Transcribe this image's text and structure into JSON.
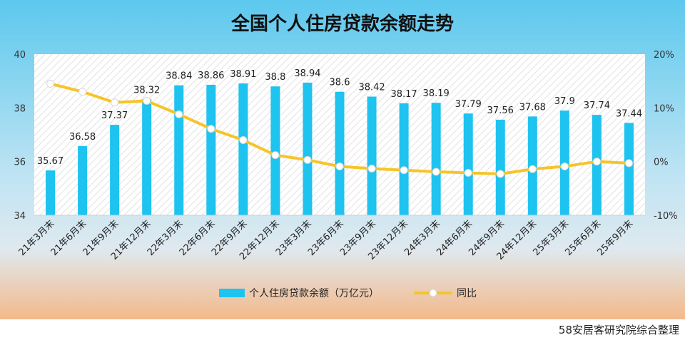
{
  "chart_data": {
    "type": "bar",
    "title": "全国个人住房贷款余额走势",
    "categories": [
      "21年3月末",
      "21年6月末",
      "21年9月末",
      "21年12月末",
      "22年3月末",
      "22年6月末",
      "22年9月末",
      "22年12月末",
      "23年3月末",
      "23年6月末",
      "23年9月末",
      "23年12月末",
      "24年3月末",
      "24年6月末",
      "24年9月末",
      "24年12月末",
      "25年3月末",
      "25年6月末",
      "25年9月末"
    ],
    "series": [
      {
        "name": "个人住房贷款余额（万亿元）",
        "type": "bar",
        "axis": "left",
        "color": "#1ec3ef",
        "values": [
          35.67,
          36.58,
          37.37,
          38.32,
          38.84,
          38.86,
          38.91,
          38.8,
          38.94,
          38.6,
          38.42,
          38.17,
          38.19,
          37.79,
          37.56,
          37.68,
          37.9,
          37.74,
          37.44
        ],
        "labels": [
          "35.67",
          "36.58",
          "37.37",
          "38.32",
          "38.84",
          "38.86",
          "38.91",
          "38.8",
          "38.94",
          "38.6",
          "38.42",
          "38.17",
          "38.19",
          "37.79",
          "37.56",
          "37.68",
          "37.9",
          "37.74",
          "37.44"
        ]
      },
      {
        "name": "同比",
        "type": "line",
        "axis": "right",
        "unit": "%",
        "color": "#f5c528",
        "values": [
          14.5,
          13.0,
          11.0,
          11.3,
          8.8,
          6.1,
          4.0,
          1.2,
          0.3,
          -0.9,
          -1.3,
          -1.6,
          -1.9,
          -2.1,
          -2.3,
          -1.4,
          -0.9,
          0.0,
          -0.3
        ]
      }
    ],
    "y_left": {
      "min": 34,
      "max": 40,
      "ticks": [
        "34",
        "36",
        "38",
        "40"
      ]
    },
    "y_right": {
      "min": -10,
      "max": 20,
      "ticks": [
        "-10%",
        "0%",
        "10%",
        "20%"
      ]
    },
    "grid": false,
    "legend": "bottom-center",
    "background": {
      "top": "#5cc8ee",
      "bottom": "#f4b98a",
      "plot": "#ffffff"
    }
  },
  "footer": {
    "credit": "58安居客研究院综合整理"
  }
}
